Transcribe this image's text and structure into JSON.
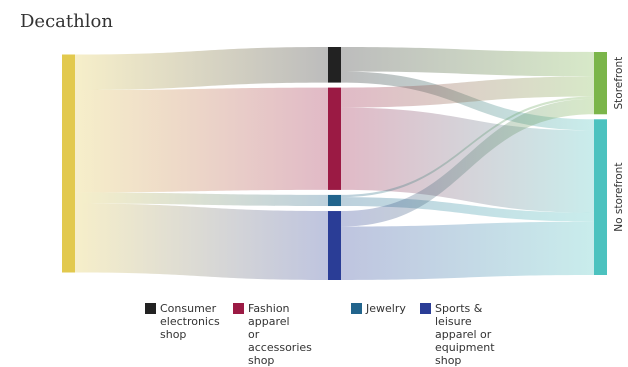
{
  "chart_data": {
    "type": "sankey",
    "title": "",
    "subtitle": "Decathlon",
    "nodes": [
      {
        "id": "decathlon",
        "label": "",
        "column": 0,
        "color": "#e2c94e"
      },
      {
        "id": "consumer_electronics",
        "label": "Consumer electronics shop",
        "column": 1,
        "color": "#222222"
      },
      {
        "id": "fashion",
        "label": "Fashion apparel or accessories shop",
        "column": 1,
        "color": "#9b1a44"
      },
      {
        "id": "jewelry",
        "label": "Jewelry",
        "column": 1,
        "color": "#22648c"
      },
      {
        "id": "sports",
        "label": "Sports & leisure apparel or equipment shop",
        "column": 1,
        "color": "#2a3d96"
      },
      {
        "id": "storefront",
        "label": "Storefront",
        "column": 2,
        "color": "#7bb54a"
      },
      {
        "id": "no_storefront",
        "label": "No storefront",
        "column": 2,
        "color": "#4cc2bf"
      }
    ],
    "links": [
      {
        "source": "decathlon",
        "target": "consumer_electronics",
        "value": 16
      },
      {
        "source": "decathlon",
        "target": "fashion",
        "value": 46
      },
      {
        "source": "decathlon",
        "target": "jewelry",
        "value": 5
      },
      {
        "source": "decathlon",
        "target": "sports",
        "value": 31
      },
      {
        "source": "consumer_electronics",
        "target": "storefront",
        "value": 11
      },
      {
        "source": "consumer_electronics",
        "target": "no_storefront",
        "value": 5
      },
      {
        "source": "fashion",
        "target": "storefront",
        "value": 9
      },
      {
        "source": "fashion",
        "target": "no_storefront",
        "value": 37
      },
      {
        "source": "jewelry",
        "target": "storefront",
        "value": 1
      },
      {
        "source": "jewelry",
        "target": "no_storefront",
        "value": 4
      },
      {
        "source": "sports",
        "target": "storefront",
        "value": 7
      },
      {
        "source": "sports",
        "target": "no_storefront",
        "value": 24
      }
    ],
    "legend": {
      "placement": "bottom",
      "items": [
        {
          "label": "Consumer\nelectronics\nshop",
          "color": "#222222"
        },
        {
          "label": "Fashion apparel\nor accessories\nshop",
          "color": "#9b1a44"
        },
        {
          "label": "Jewelry",
          "color": "#22648c"
        },
        {
          "label": "Sports & leisure\napparel or\nequipment shop",
          "color": "#2a3d96"
        }
      ]
    }
  }
}
